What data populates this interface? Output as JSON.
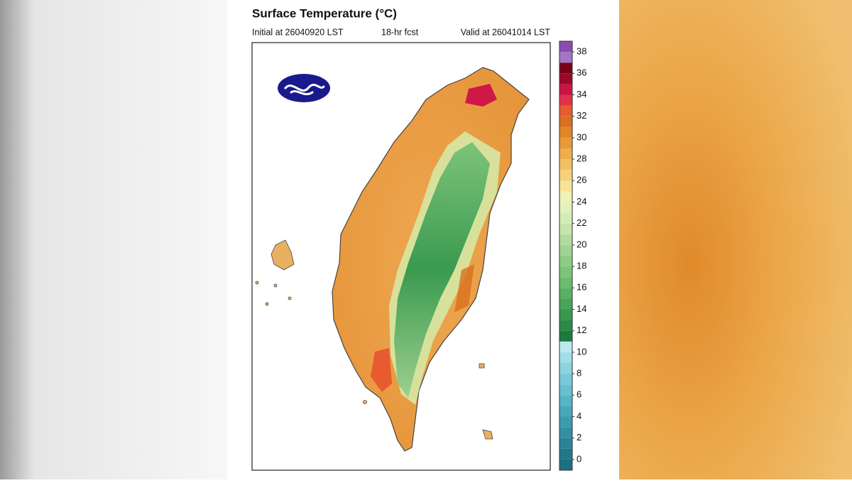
{
  "header": {
    "title": "Surface Temperature (°C)",
    "initial": "Initial at 26040920 LST",
    "forecast": "18-hr fcst",
    "valid": "Valid at 26041014 LST"
  },
  "colorbar": {
    "range": [
      -1,
      39
    ],
    "ticks": [
      0,
      2,
      4,
      6,
      8,
      10,
      12,
      14,
      16,
      18,
      20,
      22,
      24,
      26,
      28,
      30,
      32,
      34,
      36,
      38
    ],
    "colors": [
      "#1e6f80",
      "#22788a",
      "#2a8496",
      "#3290a2",
      "#3c9cae",
      "#48a8ba",
      "#56b4c6",
      "#66c0d0",
      "#78cad8",
      "#8cd4e0",
      "#a2dee8",
      "#bce8f0",
      "#1e7a3c",
      "#2a8a46",
      "#38984e",
      "#48a458",
      "#58b062",
      "#6abc6e",
      "#7cc47a",
      "#8ecc86",
      "#a0d492",
      "#b2dc9e",
      "#c4e4aa",
      "#d4ecb4",
      "#e2f2bc",
      "#f0f0b8",
      "#f6e496",
      "#f4d27a",
      "#f0c062",
      "#eeae4e",
      "#e89a3a",
      "#e08628",
      "#d8701e",
      "#e85a30",
      "#e0304a",
      "#c81448",
      "#9a0a28",
      "#7a0018",
      "#a276c4",
      "#8a4cb0"
    ]
  }
}
